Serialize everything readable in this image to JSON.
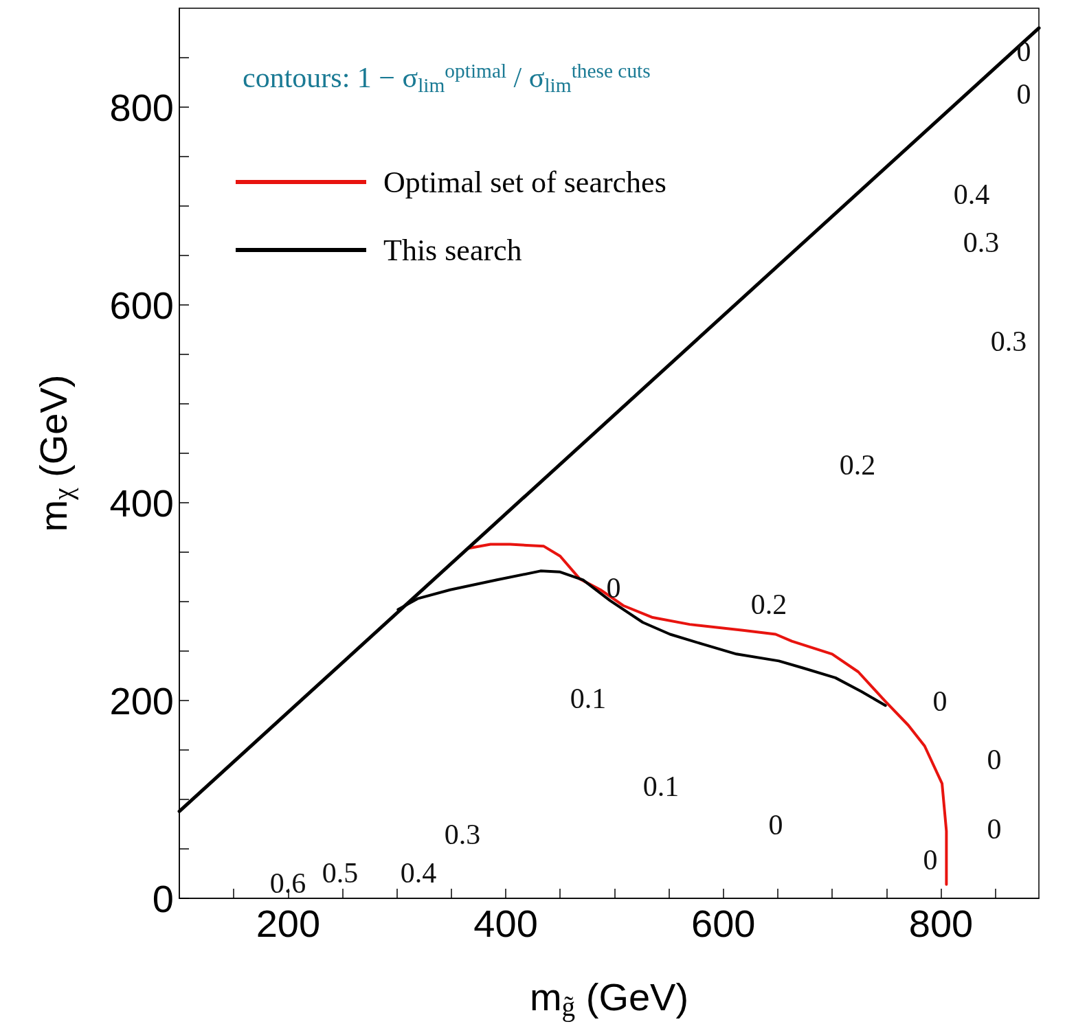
{
  "chart_data": {
    "type": "line",
    "xlabel": "m$_{g̃}$ (GeV)",
    "ylabel": "m$_{χ}$ (GeV)",
    "xlim": [
      100,
      890
    ],
    "ylim": [
      0,
      900
    ],
    "xticks": [
      {
        "value": 150,
        "label": null
      },
      200,
      {
        "value": 250,
        "label": null
      },
      {
        "value": 300,
        "label": null
      },
      {
        "value": 350,
        "label": null
      },
      400,
      {
        "value": 450,
        "label": null
      },
      {
        "value": 500,
        "label": null
      },
      {
        "value": 550,
        "label": null
      },
      600,
      {
        "value": 650,
        "label": null
      },
      {
        "value": 700,
        "label": null
      },
      {
        "value": 750,
        "label": null
      },
      800,
      {
        "value": 850,
        "label": null
      }
    ],
    "yticks": [
      0,
      {
        "value": 50,
        "label": null
      },
      {
        "value": 100,
        "label": null
      },
      {
        "value": 150,
        "label": null
      },
      200,
      {
        "value": 250,
        "label": null
      },
      {
        "value": 300,
        "label": null
      },
      {
        "value": 350,
        "label": null
      },
      400,
      {
        "value": 450,
        "label": null
      },
      {
        "value": 500,
        "label": null
      },
      {
        "value": 550,
        "label": null
      },
      600,
      {
        "value": 650,
        "label": null
      },
      {
        "value": 700,
        "label": null
      },
      {
        "value": 750,
        "label": null
      },
      800,
      {
        "value": 850,
        "label": null
      }
    ],
    "grid": false,
    "legend": "top left",
    "marker": "none",
    "series": [
      {
        "name": "Optimal set of searches",
        "color": "#e8140f",
        "x": [
          366,
          386,
          404,
          435,
          450,
          468,
          487,
          508,
          535,
          569,
          618,
          648,
          663,
          700,
          724,
          749,
          770,
          785,
          801,
          805,
          805
        ],
        "values": [
          354,
          358,
          358,
          356,
          346,
          323,
          312,
          296,
          284,
          277,
          271,
          267,
          260,
          247,
          229,
          199,
          175,
          154,
          116,
          68,
          14
        ]
      },
      {
        "name": "This search",
        "color": "#000000",
        "x": [
          301,
          319,
          349,
          392,
          432,
          450,
          471,
          496,
          526,
          551,
          581,
          612,
          651,
          673,
          703,
          727,
          749
        ],
        "values": [
          292,
          303,
          312,
          322,
          331,
          330,
          322,
          301,
          279,
          267,
          257,
          247,
          240,
          233,
          223,
          209,
          195
        ]
      },
      {
        "color": "#000000",
        "x": [
          100,
          890
        ],
        "values": [
          88,
          880
        ]
      }
    ],
    "annotations": [
      "contours: 1 − σ$_{lim}$$^{optimal}$ / σ$_{lim}$$^{these cuts}$",
      "0",
      "0",
      "0.4",
      "0.3",
      "0.3",
      "0.2",
      "0",
      "0.2",
      "0.1",
      "0",
      "0",
      "0.1",
      "0",
      "0",
      "0",
      "0.3",
      "0.6",
      "0.5",
      "0.4"
    ]
  }
}
